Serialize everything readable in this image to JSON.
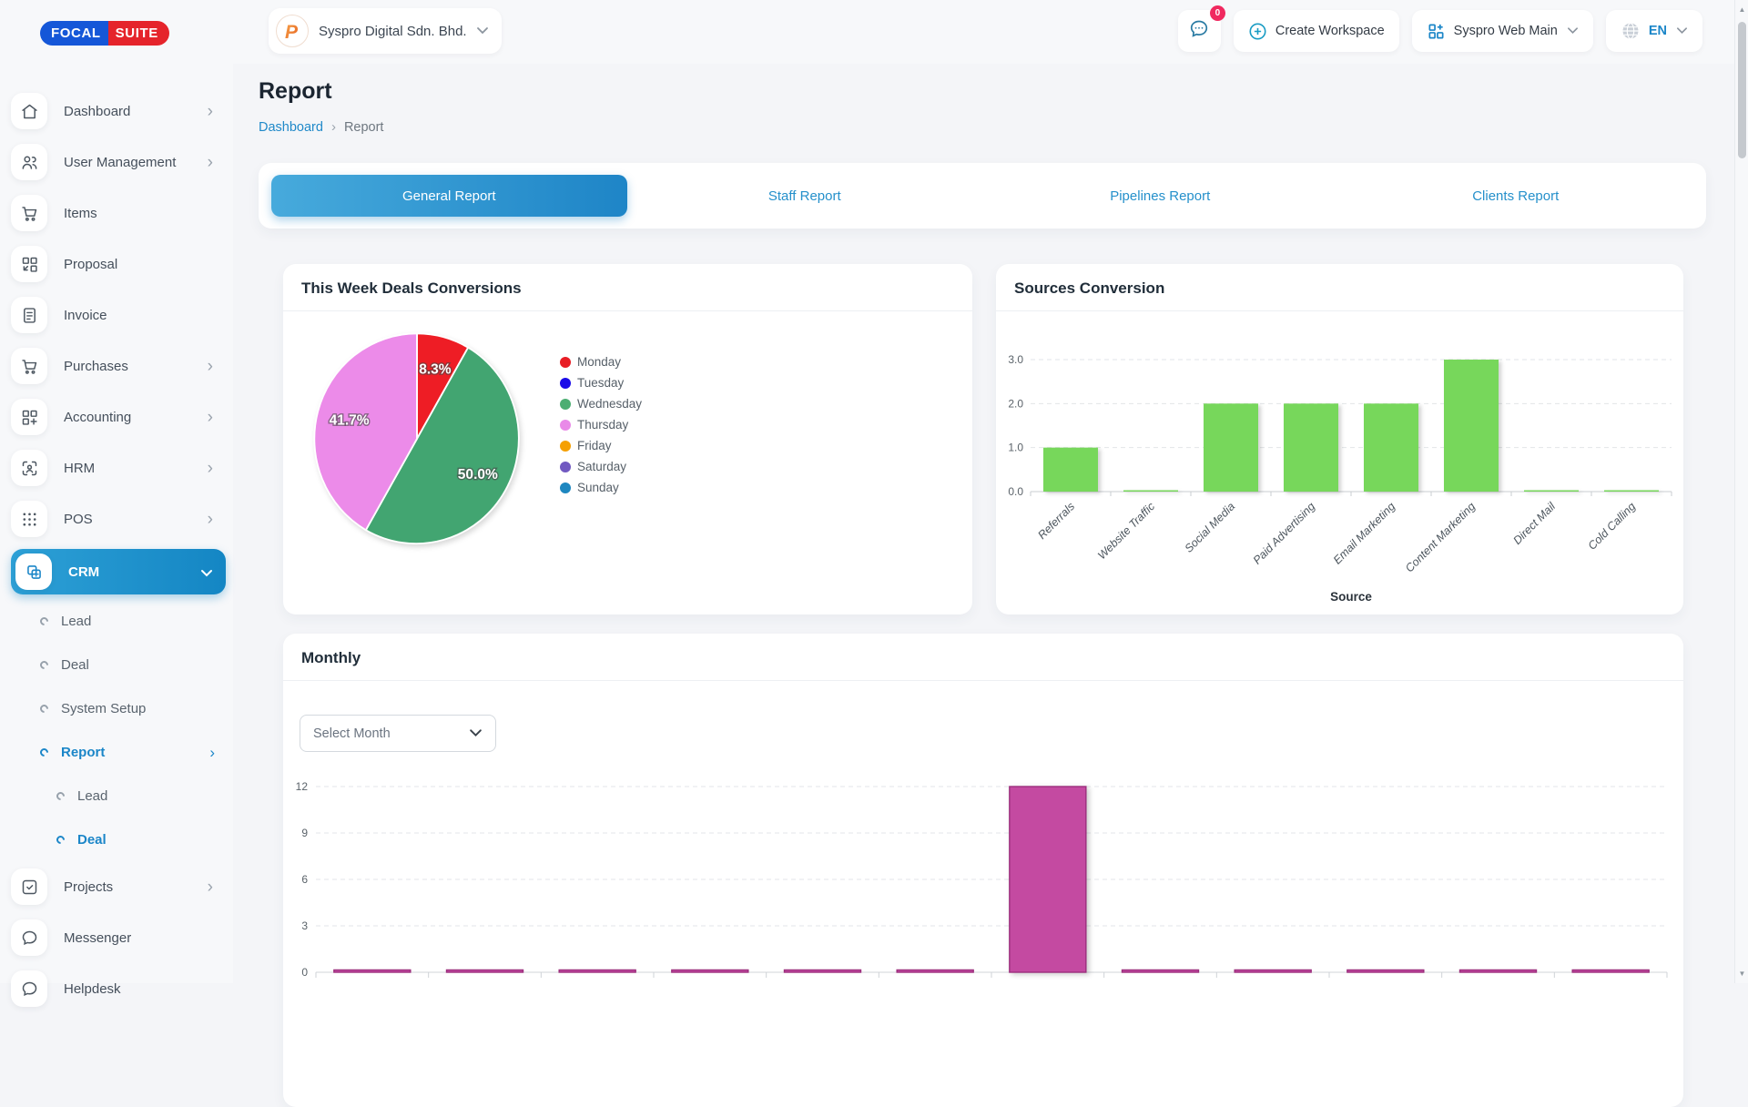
{
  "brand": {
    "name_left": "FOCAL",
    "name_right": "SUITE"
  },
  "header": {
    "workspace_name": "Syspro Digital Sdn. Bhd.",
    "messages_badge": "0",
    "create_workspace": "Create Workspace",
    "active_workspace": "Syspro Web Main",
    "language": "EN"
  },
  "page": {
    "title": "Report",
    "breadcrumb_home": "Dashboard",
    "breadcrumb_current": "Report"
  },
  "tabs": [
    {
      "label": "General Report",
      "active": true
    },
    {
      "label": "Staff Report",
      "active": false
    },
    {
      "label": "Pipelines Report",
      "active": false
    },
    {
      "label": "Clients Report",
      "active": false
    }
  ],
  "sidebar": {
    "items": [
      {
        "label": "Dashboard"
      },
      {
        "label": "User Management"
      },
      {
        "label": "Items"
      },
      {
        "label": "Proposal"
      },
      {
        "label": "Invoice"
      },
      {
        "label": "Purchases"
      },
      {
        "label": "Accounting"
      },
      {
        "label": "HRM"
      },
      {
        "label": "POS"
      },
      {
        "label": "CRM"
      },
      {
        "label": "Lead"
      },
      {
        "label": "Deal"
      },
      {
        "label": "System Setup"
      },
      {
        "label": "Report"
      },
      {
        "label": "Lead"
      },
      {
        "label": "Deal"
      },
      {
        "label": "Projects"
      },
      {
        "label": "Messenger"
      },
      {
        "label": "Helpdesk"
      }
    ]
  },
  "monthly": {
    "title": "Monthly",
    "select_placeholder": "Select Month"
  },
  "chart_data": [
    {
      "type": "pie",
      "title": "This Week Deals Conversions",
      "slices": [
        {
          "label": "Monday",
          "value": 8.3,
          "pct_label": "8.3%",
          "color": "#ee1d25"
        },
        {
          "label": "Wednesday",
          "value": 50.0,
          "pct_label": "50.0%",
          "color": "#42a571"
        },
        {
          "label": "Thursday",
          "value": 41.7,
          "pct_label": "41.7%",
          "color": "#ec8be9"
        }
      ],
      "legend": [
        {
          "label": "Monday",
          "color": "#e81d25"
        },
        {
          "label": "Tuesday",
          "color": "#1a0be8"
        },
        {
          "label": "Wednesday",
          "color": "#4cae72"
        },
        {
          "label": "Thursday",
          "color": "#e98ae8"
        },
        {
          "label": "Friday",
          "color": "#f5a002"
        },
        {
          "label": "Saturday",
          "color": "#7159c1"
        },
        {
          "label": "Sunday",
          "color": "#1e87c0"
        }
      ],
      "legend_position": "right"
    },
    {
      "type": "bar",
      "title": "Sources Conversion",
      "categories": [
        "Referrals",
        "Website Traffic",
        "Social Media",
        "Paid Advertising",
        "Email Marketing",
        "Content Marketing",
        "Direct Mail",
        "Cold Calling"
      ],
      "values": [
        1.0,
        0.02,
        2.0,
        2.0,
        2.0,
        3.0,
        0.02,
        0.02
      ],
      "xlabel": "Source",
      "ylabel": "",
      "yticks": [
        0,
        1,
        2,
        3
      ],
      "ytick_labels": [
        "0.0",
        "1.0",
        "2.0",
        "3.0"
      ],
      "ylim": [
        0,
        3.3
      ],
      "grid": "dashed",
      "bar_color": "#77d75b"
    },
    {
      "type": "bar",
      "title": "Monthly",
      "categories": [
        "",
        "",
        "",
        "",
        "",
        "",
        "",
        "",
        "",
        "",
        "",
        ""
      ],
      "categories_visible": false,
      "values": [
        0.15,
        0.15,
        0.15,
        0.15,
        0.15,
        0.15,
        12,
        0.15,
        0.15,
        0.15,
        0.15,
        0.15
      ],
      "yticks": [
        0,
        3,
        6,
        9,
        12
      ],
      "ytick_labels": [
        "0",
        "3",
        "6",
        "9",
        "12"
      ],
      "ylim": [
        0,
        12.7
      ],
      "grid": "dashed",
      "bar_color": "#c44aa1",
      "bar_border": "#9c2f7d"
    }
  ],
  "colors": {
    "accent": "#1b86c8",
    "link": "#2089c9",
    "badge": "#f0295f"
  }
}
